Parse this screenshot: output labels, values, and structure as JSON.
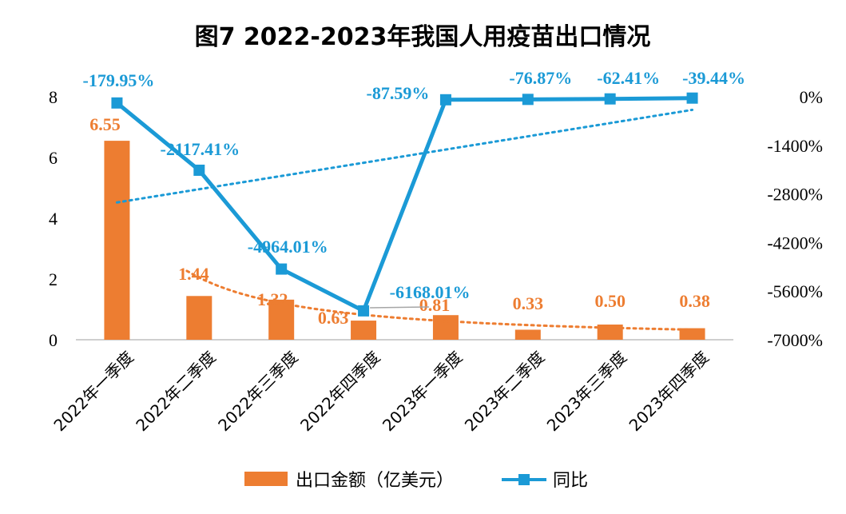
{
  "colors": {
    "bar": "#ED7D31",
    "line": "#1B9AD6",
    "leader": "#A6A6A6"
  },
  "chart_data": {
    "title": "图7  2022-2023年我国人用疫苗出口情况",
    "type": "bar+line",
    "categories": [
      "2022年一季度",
      "2022年二季度",
      "2022年三季度",
      "2022年四季度",
      "2023年一季度",
      "2023年二季度",
      "2023年三季度",
      "2023年四季度"
    ],
    "series": [
      {
        "name": "出口金额（亿美元）",
        "type": "bar",
        "axis": "left",
        "values": [
          6.55,
          1.44,
          1.32,
          0.63,
          0.81,
          0.33,
          0.5,
          0.38
        ],
        "labels": [
          "6.55",
          "1.44",
          "1.32",
          "0.63",
          "0.81",
          "0.33",
          "0.50",
          "0.38"
        ],
        "trendline": true
      },
      {
        "name": "同比",
        "type": "line",
        "axis": "right",
        "values": [
          -179.95,
          -2117.41,
          -4964.01,
          -6168.01,
          -87.59,
          -76.87,
          -62.41,
          -39.44
        ],
        "labels": [
          "-179.95%",
          "-2117.41%",
          "-4964.01%",
          "-6168.01%",
          "-87.59%",
          "-76.87%",
          "-62.41%",
          "-39.44%"
        ],
        "trendline": true
      }
    ],
    "y_left": {
      "min": 0,
      "max": 8,
      "ticks": [
        "0",
        "2",
        "4",
        "6",
        "8"
      ]
    },
    "y_right": {
      "min": -7000,
      "max": 0,
      "ticks": [
        "0%",
        "-1400%",
        "-2800%",
        "-4200%",
        "-5600%",
        "-7000%"
      ]
    },
    "legend": {
      "position": "bottom",
      "entries": [
        "出口金额（亿美元）",
        "同比"
      ]
    }
  }
}
